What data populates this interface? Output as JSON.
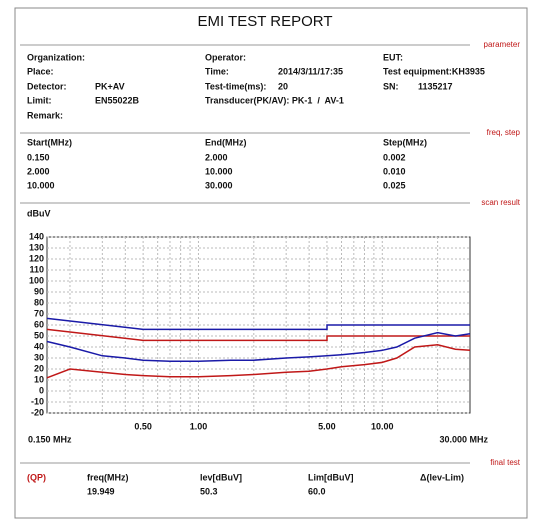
{
  "header": {
    "title": "EMI TEST REPORT"
  },
  "sections": {
    "parameter": "parameter",
    "freq_step": "freq, step",
    "scan_result": "scan result",
    "final_test": "final test"
  },
  "parameters": {
    "organization": "Organization:",
    "operator": "Operator:",
    "eut": "EUT:",
    "place": "Place:",
    "time_label": "Time:",
    "time": "2014/3/11/17:35",
    "equipment": "Test equipment:KH3935",
    "detector_label": "Detector:",
    "detector": "PK+AV",
    "test_time_label": "Test-time(ms):",
    "test_time": "20",
    "sn_label": "SN:",
    "sn": "1135217",
    "limit_label": "Limit:",
    "limit": "EN55022B",
    "transducer": "Transducer(PK/AV): PK-1  /  AV-1",
    "remark": "Remark:"
  },
  "freq_table": {
    "headers": [
      "Start(MHz)",
      "End(MHz)",
      "Step(MHz)"
    ],
    "rows": [
      [
        "0.150",
        "2.000",
        "0.002"
      ],
      [
        "2.000",
        "10.000",
        "0.010"
      ],
      [
        "10.000",
        "30.000",
        "0.025"
      ]
    ]
  },
  "final_table": {
    "detector": "(QP)",
    "headers": [
      "freq(MHz)",
      "lev[dBuV]",
      "Lim[dBuV]",
      "Δ(lev-Lim)"
    ],
    "values": [
      "19.949",
      "50.3",
      "60.0"
    ]
  },
  "chart_data": {
    "type": "line",
    "y_label": "dBuV",
    "log_x": true,
    "xlim": [
      0.15,
      30
    ],
    "ylim": [
      -20,
      140
    ],
    "yticks": [
      -20,
      -10,
      0,
      10,
      20,
      30,
      40,
      50,
      60,
      70,
      80,
      90,
      100,
      110,
      120,
      130,
      140
    ],
    "xticks": [
      {
        "value": 0.15,
        "label": "0.150 MHz"
      },
      {
        "value": 0.5,
        "label": "0.50"
      },
      {
        "value": 1,
        "label": "1.00"
      },
      {
        "value": 5,
        "label": "5.00"
      },
      {
        "value": 10,
        "label": "10.00"
      },
      {
        "value": 30,
        "label": "30.000 MHz"
      }
    ],
    "x_minor_grid": [
      0.2,
      0.3,
      0.4,
      0.6,
      0.7,
      0.8,
      0.9,
      2,
      3,
      4,
      6,
      7,
      8,
      9,
      20
    ],
    "grid": true,
    "series": [
      {
        "color": "#1a1aa8",
        "x": [
          0.15,
          0.5,
          5,
          5,
          30
        ],
        "values": [
          66,
          56,
          56,
          60,
          60
        ]
      },
      {
        "color": "#c01818",
        "x": [
          0.15,
          0.5,
          5,
          5,
          30
        ],
        "values": [
          56,
          46,
          46,
          50,
          50
        ]
      },
      {
        "color": "#1a1aa8",
        "x": [
          0.15,
          0.2,
          0.3,
          0.4,
          0.5,
          0.7,
          1,
          1.5,
          2,
          3,
          4,
          5,
          6,
          8,
          10,
          12,
          15,
          20,
          25,
          30
        ],
        "values": [
          45,
          40,
          32,
          30,
          28,
          27,
          27,
          28,
          28,
          30,
          31,
          32,
          33,
          35,
          37,
          40,
          48,
          53,
          50,
          52
        ]
      },
      {
        "color": "#c01818",
        "x": [
          0.15,
          0.2,
          0.3,
          0.4,
          0.5,
          0.7,
          1,
          1.5,
          2,
          3,
          4,
          5,
          6,
          8,
          10,
          12,
          15,
          20,
          25,
          30
        ],
        "values": [
          12,
          20,
          17,
          15,
          14,
          13,
          13,
          14,
          15,
          17,
          18,
          20,
          22,
          24,
          26,
          30,
          40,
          42,
          38,
          37
        ]
      }
    ]
  }
}
